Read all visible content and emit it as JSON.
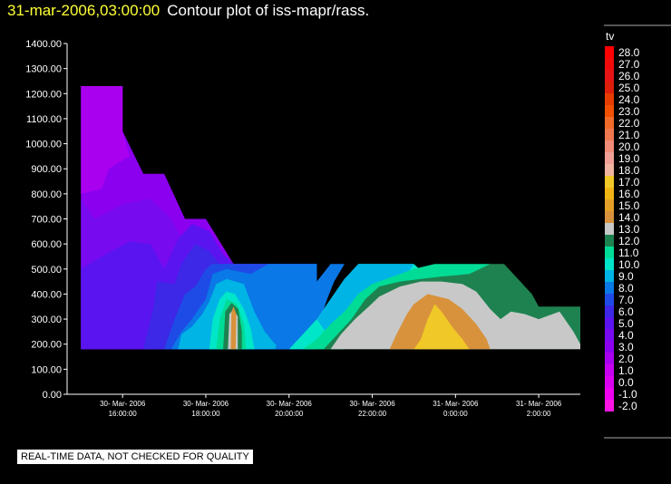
{
  "header": {
    "timestamp": "31-mar-2006,03:00:00",
    "title": "Contour plot of iss-mapr/rass."
  },
  "footer": {
    "note": "REAL-TIME DATA, NOT CHECKED FOR QUALITY"
  },
  "colorbar": {
    "label": "tv",
    "levels": [
      {
        "value": "28.0",
        "color": "#ff0000"
      },
      {
        "value": "27.0",
        "color": "#f00a0a"
      },
      {
        "value": "26.0",
        "color": "#e61414"
      },
      {
        "value": "25.0",
        "color": "#dc1e0a"
      },
      {
        "value": "24.0",
        "color": "#e63c00"
      },
      {
        "value": "23.0",
        "color": "#f05000"
      },
      {
        "value": "22.0",
        "color": "#f06a2a"
      },
      {
        "value": "21.0",
        "color": "#f07850"
      },
      {
        "value": "20.0",
        "color": "#f08c78"
      },
      {
        "value": "19.0",
        "color": "#f0a096"
      },
      {
        "value": "18.0",
        "color": "#f0b4a0"
      },
      {
        "value": "17.0",
        "color": "#f0c828"
      },
      {
        "value": "16.0",
        "color": "#f0b414"
      },
      {
        "value": "15.0",
        "color": "#e6a028"
      },
      {
        "value": "14.0",
        "color": "#d8923c"
      },
      {
        "value": "13.0",
        "color": "#c8c8c8"
      },
      {
        "value": "12.0",
        "color": "#1e8250"
      },
      {
        "value": "11.0",
        "color": "#00dc96"
      },
      {
        "value": "10.0",
        "color": "#00e6c8"
      },
      {
        "value": "9.0",
        "color": "#00b4e6"
      },
      {
        "value": "8.0",
        "color": "#0a78e6"
      },
      {
        "value": "7.0",
        "color": "#1e4be6"
      },
      {
        "value": "6.0",
        "color": "#3c28e6"
      },
      {
        "value": "5.0",
        "color": "#5a14f0"
      },
      {
        "value": "4.0",
        "color": "#780af0"
      },
      {
        "value": "3.0",
        "color": "#8c00f0"
      },
      {
        "value": "2.0",
        "color": "#aa00f0"
      },
      {
        "value": "1.0",
        "color": "#c800f0"
      },
      {
        "value": "0.0",
        "color": "#dc00f0"
      },
      {
        "value": "-1.0",
        "color": "#f000f0"
      },
      {
        "value": "-2.0",
        "color": "#ff14e6"
      }
    ]
  },
  "chart_data": {
    "type": "heatmap",
    "title": "Contour plot of iss-mapr/rass.",
    "xlabel": "",
    "ylabel": "",
    "ylim": [
      0,
      1400
    ],
    "xlim": [
      "30-Mar-2006 14:40:00",
      "31-Mar-2006 03:00:00"
    ],
    "yticks": [
      "1400.00",
      "1300.00",
      "1200.00",
      "1100.00",
      "1000.00",
      "900.00",
      "800.00",
      "700.00",
      "600.00",
      "500.00",
      "400.00",
      "300.00",
      "200.00",
      "100.00",
      "0.00"
    ],
    "xticks": [
      {
        "date": "30- Mar- 2006",
        "time": "16:00:00"
      },
      {
        "date": "30- Mar- 2006",
        "time": "18:00:00"
      },
      {
        "date": "30- Mar- 2006",
        "time": "20:00:00"
      },
      {
        "date": "30- Mar- 2006",
        "time": "22:00:00"
      },
      {
        "date": "31- Mar- 2006",
        "time": "0:00:00"
      },
      {
        "date": "31- Mar- 2006",
        "time": "2:00:00"
      }
    ],
    "regions": [
      {
        "tv": 3.5,
        "color": "#8c00f0",
        "poly": [
          [
            "15:00",
            180
          ],
          [
            "15:00",
            1230
          ],
          [
            "16:00",
            1230
          ],
          [
            "16:00",
            1050
          ],
          [
            "16:30",
            880
          ],
          [
            "17:00",
            880
          ],
          [
            "17:30",
            700
          ],
          [
            "18:00",
            700
          ],
          [
            "18:40",
            520
          ],
          [
            "20:40",
            520
          ],
          [
            "20:40",
            180
          ]
        ]
      },
      {
        "tv": 2.5,
        "color": "#aa00f0",
        "poly": [
          [
            "15:00",
            800
          ],
          [
            "15:00",
            1230
          ],
          [
            "16:00",
            1230
          ],
          [
            "16:00",
            1050
          ],
          [
            "16:10",
            950
          ],
          [
            "15:40",
            900
          ],
          [
            "15:30",
            820
          ]
        ]
      },
      {
        "tv": 4.5,
        "color": "#780af0",
        "poly": [
          [
            "15:00",
            180
          ],
          [
            "15:00",
            780
          ],
          [
            "15:20",
            700
          ],
          [
            "16:00",
            760
          ],
          [
            "16:40",
            780
          ],
          [
            "17:10",
            700
          ],
          [
            "17:30",
            600
          ],
          [
            "18:00",
            580
          ],
          [
            "18:20",
            540
          ],
          [
            "18:40",
            520
          ],
          [
            "20:40",
            520
          ],
          [
            "20:40",
            180
          ]
        ]
      },
      {
        "tv": 5.5,
        "color": "#5a14f0",
        "poly": [
          [
            "15:00",
            180
          ],
          [
            "15:00",
            500
          ],
          [
            "15:30",
            550
          ],
          [
            "16:10",
            610
          ],
          [
            "16:40",
            600
          ],
          [
            "17:00",
            500
          ],
          [
            "17:20",
            620
          ],
          [
            "17:40",
            680
          ],
          [
            "18:05",
            650
          ],
          [
            "18:25",
            560
          ],
          [
            "18:40",
            520
          ],
          [
            "20:40",
            520
          ],
          [
            "20:40",
            180
          ]
        ]
      },
      {
        "tv": 6.5,
        "color": "#3c28e6",
        "poly": [
          [
            "16:30",
            180
          ],
          [
            "16:45",
            350
          ],
          [
            "16:50",
            450
          ],
          [
            "17:15",
            440
          ],
          [
            "17:25",
            520
          ],
          [
            "17:45",
            600
          ],
          [
            "18:05",
            570
          ],
          [
            "18:20",
            520
          ],
          [
            "20:40",
            520
          ],
          [
            "20:40",
            180
          ]
        ]
      },
      {
        "tv": 7.5,
        "color": "#1e4be6",
        "poly": [
          [
            "17:00",
            180
          ],
          [
            "17:15",
            300
          ],
          [
            "17:30",
            400
          ],
          [
            "17:45",
            430
          ],
          [
            "18:00",
            500
          ],
          [
            "18:10",
            520
          ],
          [
            "20:40",
            520
          ],
          [
            "20:40",
            180
          ]
        ]
      },
      {
        "tv": 8.5,
        "color": "#0a78e6",
        "poly": [
          [
            "17:10",
            180
          ],
          [
            "17:25",
            250
          ],
          [
            "17:40",
            300
          ],
          [
            "17:50",
            340
          ],
          [
            "18:00",
            380
          ],
          [
            "18:10",
            480
          ],
          [
            "18:30",
            500
          ],
          [
            "19:05",
            480
          ],
          [
            "19:30",
            520
          ],
          [
            "20:40",
            520
          ],
          [
            "20:40",
            180
          ]
        ]
      },
      {
        "tv": 9.5,
        "color": "#00b4e6",
        "poly": [
          [
            "17:20",
            180
          ],
          [
            "17:25",
            240
          ],
          [
            "17:40",
            270
          ],
          [
            "17:55",
            320
          ],
          [
            "18:05",
            370
          ],
          [
            "18:15",
            440
          ],
          [
            "18:30",
            460
          ],
          [
            "18:55",
            440
          ],
          [
            "19:10",
            330
          ],
          [
            "19:25",
            250
          ],
          [
            "19:40",
            200
          ],
          [
            "19:50",
            180
          ]
        ]
      },
      {
        "tv": 10.5,
        "color": "#00e6c8",
        "poly": [
          [
            "18:05",
            180
          ],
          [
            "18:10",
            300
          ],
          [
            "18:20",
            380
          ],
          [
            "18:30",
            410
          ],
          [
            "18:42",
            400
          ],
          [
            "18:55",
            340
          ],
          [
            "19:05",
            260
          ],
          [
            "19:10",
            180
          ]
        ]
      },
      {
        "tv": 11.5,
        "color": "#00dc96",
        "poly": [
          [
            "18:15",
            180
          ],
          [
            "18:20",
            300
          ],
          [
            "18:30",
            380
          ],
          [
            "18:45",
            360
          ],
          [
            "18:55",
            280
          ],
          [
            "18:58",
            180
          ]
        ]
      },
      {
        "tv": 12.5,
        "color": "#1e8250",
        "poly": [
          [
            "18:25",
            180
          ],
          [
            "18:28",
            330
          ],
          [
            "18:37",
            365
          ],
          [
            "18:47",
            340
          ],
          [
            "18:52",
            250
          ],
          [
            "18:52",
            180
          ]
        ]
      },
      {
        "tv": 13.5,
        "color": "#c8c8c8",
        "poly": [
          [
            "18:32",
            180
          ],
          [
            "18:34",
            320
          ],
          [
            "18:40",
            340
          ],
          [
            "18:46",
            310
          ],
          [
            "18:46",
            180
          ]
        ]
      },
      {
        "tv": 14.5,
        "color": "#d8923c",
        "poly": [
          [
            "18:36",
            180
          ],
          [
            "18:37",
            330
          ],
          [
            "18:40",
            350
          ],
          [
            "18:44",
            320
          ],
          [
            "18:43",
            180
          ]
        ]
      },
      {
        "tv": 8.5,
        "color": "#0a78e6",
        "poly": [
          [
            "19:40",
            180
          ],
          [
            "19:50",
            270
          ],
          [
            "20:05",
            340
          ],
          [
            "20:20",
            400
          ],
          [
            "20:40",
            450
          ],
          [
            "21:00",
            520
          ],
          [
            "21:20",
            520
          ],
          [
            "21:05",
            450
          ],
          [
            "20:55",
            380
          ],
          [
            "20:45",
            300
          ],
          [
            "20:40",
            260
          ],
          [
            "20:20",
            220
          ],
          [
            "20:10",
            180
          ]
        ]
      },
      {
        "tv": 10.5,
        "color": "#00e6c8",
        "poly": [
          [
            "20:00",
            180
          ],
          [
            "20:20",
            240
          ],
          [
            "20:40",
            300
          ],
          [
            "21:00",
            380
          ],
          [
            "21:20",
            460
          ],
          [
            "21:40",
            520
          ],
          [
            "23:00",
            520
          ],
          [
            "23:20",
            470
          ],
          [
            "22:40",
            430
          ],
          [
            "22:10",
            400
          ],
          [
            "21:50",
            340
          ],
          [
            "21:40",
            280
          ],
          [
            "21:30",
            220
          ],
          [
            "21:20",
            180
          ]
        ]
      },
      {
        "tv": 9.5,
        "color": "#00b4e6",
        "poly": [
          [
            "21:10",
            180
          ],
          [
            "21:30",
            260
          ],
          [
            "21:45",
            340
          ],
          [
            "22:10",
            420
          ],
          [
            "22:45",
            460
          ],
          [
            "23:00",
            520
          ],
          [
            "21:40",
            520
          ],
          [
            "21:20",
            460
          ],
          [
            "21:00",
            380
          ],
          [
            "20:40",
            300
          ]
        ]
      },
      {
        "tv": 11.5,
        "color": "#00dc96",
        "poly": [
          [
            "20:20",
            180
          ],
          [
            "20:40",
            220
          ],
          [
            "21:00",
            280
          ],
          [
            "21:20",
            330
          ],
          [
            "21:40",
            400
          ],
          [
            "22:00",
            440
          ],
          [
            "22:30",
            470
          ],
          [
            "23:00",
            500
          ],
          [
            "23:30",
            520
          ],
          [
            "24:50",
            520
          ],
          [
            "24:40",
            480
          ],
          [
            "24:20",
            440
          ],
          [
            "23:50",
            430
          ],
          [
            "23:30",
            410
          ],
          [
            "22:40",
            400
          ],
          [
            "22:20",
            350
          ],
          [
            "22:00",
            300
          ],
          [
            "21:40",
            240
          ],
          [
            "21:20",
            180
          ]
        ]
      },
      {
        "tv": 12.5,
        "color": "#1e8250",
        "poly": [
          [
            "20:50",
            180
          ],
          [
            "21:10",
            240
          ],
          [
            "21:30",
            300
          ],
          [
            "21:50",
            380
          ],
          [
            "22:10",
            430
          ],
          [
            "22:40",
            450
          ],
          [
            "23:10",
            460
          ],
          [
            "23:40",
            470
          ],
          [
            "24:20",
            480
          ],
          [
            "24:50",
            520
          ],
          [
            "25:10",
            520
          ],
          [
            "25:30",
            460
          ],
          [
            "25:50",
            400
          ],
          [
            "26:00",
            350
          ],
          [
            "27:00",
            350
          ],
          [
            "27:00",
            180
          ]
        ]
      },
      {
        "tv": 13.5,
        "color": "#c8c8c8",
        "poly": [
          [
            "21:00",
            180
          ],
          [
            "21:15",
            240
          ],
          [
            "21:35",
            300
          ],
          [
            "21:55",
            350
          ],
          [
            "22:10",
            390
          ],
          [
            "22:40",
            430
          ],
          [
            "23:10",
            450
          ],
          [
            "23:40",
            450
          ],
          [
            "24:10",
            440
          ],
          [
            "24:30",
            410
          ],
          [
            "24:50",
            340
          ],
          [
            "25:05",
            300
          ],
          [
            "25:20",
            330
          ],
          [
            "25:40",
            320
          ],
          [
            "26:00",
            300
          ],
          [
            "26:30",
            330
          ],
          [
            "26:50",
            250
          ],
          [
            "27:00",
            200
          ],
          [
            "27:00",
            180
          ]
        ]
      },
      {
        "tv": 14.5,
        "color": "#d8923c",
        "poly": [
          [
            "22:25",
            180
          ],
          [
            "22:35",
            240
          ],
          [
            "22:50",
            320
          ],
          [
            "23:00",
            360
          ],
          [
            "23:20",
            400
          ],
          [
            "23:50",
            380
          ],
          [
            "24:10",
            340
          ],
          [
            "24:30",
            280
          ],
          [
            "24:45",
            220
          ],
          [
            "24:50",
            180
          ]
        ]
      },
      {
        "tv": 16.5,
        "color": "#f0c828",
        "poly": [
          [
            "23:00",
            180
          ],
          [
            "23:10",
            220
          ],
          [
            "23:20",
            300
          ],
          [
            "23:30",
            360
          ],
          [
            "23:40",
            330
          ],
          [
            "23:55",
            270
          ],
          [
            "24:10",
            220
          ],
          [
            "24:20",
            180
          ]
        ]
      }
    ],
    "mask_below": 180
  }
}
